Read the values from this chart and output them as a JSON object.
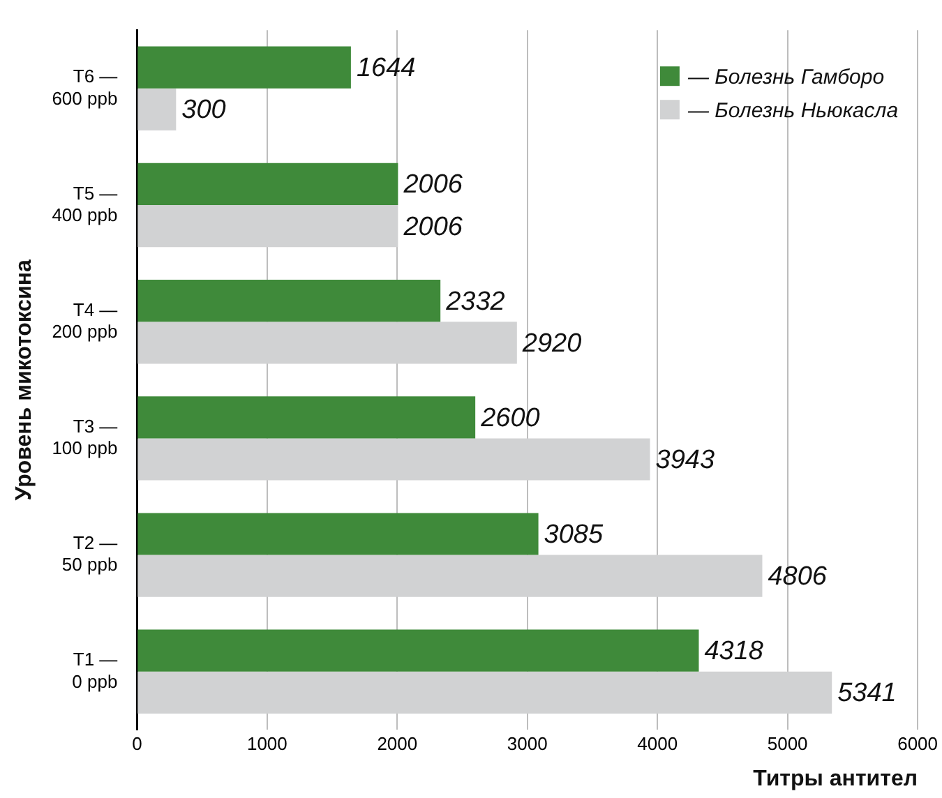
{
  "chart_data": {
    "type": "bar",
    "orientation": "horizontal",
    "xlabel": "Титры антител",
    "ylabel": "Уровень микотоксина",
    "categories": [
      "T6 —\n600 ppb",
      "T5 —\n400 ppb",
      "T4 —\n200 ppb",
      "T3 —\n100 ppb",
      "T2 —\n50 ppb",
      "T1 —\n0 ppb"
    ],
    "series": [
      {
        "name": "— Болезнь Гамборо",
        "color": "#3f8a3a",
        "values": [
          1644,
          2006,
          2332,
          2600,
          3085,
          4318
        ]
      },
      {
        "name": "— Болезнь Ньюкасла",
        "color": "#d1d2d3",
        "values": [
          300,
          2006,
          2920,
          3943,
          4806,
          5341
        ]
      }
    ],
    "xlim": [
      0,
      6000
    ],
    "xticks": [
      0,
      1000,
      2000,
      3000,
      4000,
      5000,
      6000
    ],
    "grid": "x",
    "legend": "top right",
    "data_labels": true
  }
}
